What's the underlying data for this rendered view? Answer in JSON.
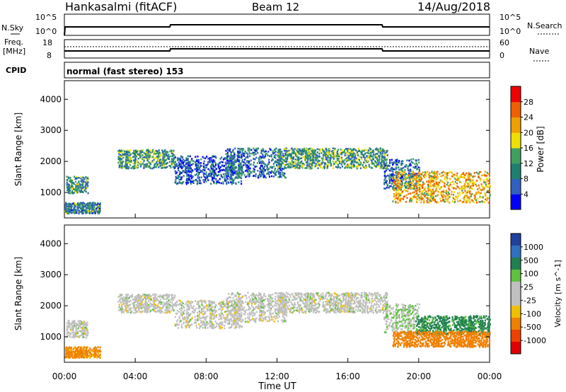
{
  "header": {
    "station": "Hankasalmi (fitACF)",
    "beam": "Beam 12",
    "date": "14/Aug/2018"
  },
  "noise_panel": {
    "left_label": "N.Sky",
    "right_label": "N.Search",
    "left_ticks": [
      "10^5",
      "10^0"
    ],
    "right_ticks": [
      "10^5",
      "10^0"
    ]
  },
  "freq_panel": {
    "left_label_1": "Freq.",
    "left_label_2": "[MHz]",
    "right_label": "Nave",
    "left_ticks": [
      "18",
      "8"
    ],
    "right_ticks": [
      "60",
      "0"
    ]
  },
  "cpid_panel": {
    "label": "CPID",
    "text": "normal (fast stereo) 153"
  },
  "colors": {
    "power_scale": [
      "#0000ff",
      "#3060c0",
      "#208070",
      "#40a060",
      "#f0e000",
      "#f0a000",
      "#f06000",
      "#f00000"
    ],
    "velocity_scale": [
      "#2040a0",
      "#3070c0",
      "#208050",
      "#60c040",
      "#c0c0c0",
      "#c0c0c0",
      "#f0c000",
      "#f08000",
      "#f04000",
      "#e00000"
    ]
  },
  "chart_data": [
    {
      "type": "heatmap",
      "quantity": "Power",
      "ylabel": "Slant Range [km]",
      "ylim": [
        180,
        4600
      ],
      "yticks": [
        "4000",
        "3000",
        "2000",
        "1000"
      ],
      "colorbar_label": "Power [dB]",
      "colorbar_ticks": [
        "28",
        "24",
        "20",
        "16",
        "12",
        "8",
        "4"
      ],
      "colorbar_range": [
        0,
        32
      ],
      "x_range_hours": [
        0,
        24
      ],
      "regions": [
        {
          "t0": 0.1,
          "t1": 1.3,
          "r0": 1000,
          "r1": 1550,
          "level": 11
        },
        {
          "t0": 0.0,
          "t1": 2.0,
          "r0": 350,
          "r1": 700,
          "level": 10
        },
        {
          "t0": 3.0,
          "t1": 6.2,
          "r0": 1800,
          "r1": 2400,
          "level": 12
        },
        {
          "t0": 6.2,
          "t1": 10.0,
          "r0": 1300,
          "r1": 2200,
          "level": 6
        },
        {
          "t0": 9.0,
          "t1": 12.5,
          "r0": 1500,
          "r1": 2450,
          "level": 8
        },
        {
          "t0": 12.0,
          "t1": 18.2,
          "r0": 1800,
          "r1": 2450,
          "level": 12
        },
        {
          "t0": 18.0,
          "t1": 20.0,
          "r0": 1150,
          "r1": 2100,
          "level": 8
        },
        {
          "t0": 18.5,
          "t1": 24.0,
          "r0": 700,
          "r1": 1700,
          "level": 21
        }
      ]
    },
    {
      "type": "heatmap",
      "quantity": "Velocity",
      "ylabel": "Slant Range [km]",
      "ylim": [
        180,
        4600
      ],
      "yticks": [
        "4000",
        "3000",
        "2000",
        "1000"
      ],
      "xlabel": "Time UT",
      "xticks": [
        "00:00",
        "04:00",
        "08:00",
        "12:00",
        "16:00",
        "20:00",
        "00:00"
      ],
      "colorbar_label": "Velocity [m s^-1]",
      "colorbar_ticks": [
        "1000",
        "500",
        "100",
        "25",
        "-25",
        "-100",
        "-500",
        "-1000"
      ],
      "regions": [
        {
          "t0": 0.1,
          "t1": 1.3,
          "r0": 1000,
          "r1": 1550,
          "velocity": 0
        },
        {
          "t0": 0.0,
          "t1": 2.0,
          "r0": 350,
          "r1": 700,
          "velocity": -80
        },
        {
          "t0": 3.0,
          "t1": 6.2,
          "r0": 1800,
          "r1": 2400,
          "velocity": 0
        },
        {
          "t0": 6.2,
          "t1": 10.0,
          "r0": 1300,
          "r1": 2200,
          "velocity": 0
        },
        {
          "t0": 9.0,
          "t1": 12.5,
          "r0": 1500,
          "r1": 2450,
          "velocity": 0
        },
        {
          "t0": 12.0,
          "t1": 18.2,
          "r0": 1800,
          "r1": 2450,
          "velocity": 0
        },
        {
          "t0": 18.0,
          "t1": 20.0,
          "r0": 1150,
          "r1": 2100,
          "velocity": 20
        },
        {
          "t0": 19.8,
          "t1": 24.0,
          "r0": 1100,
          "r1": 1700,
          "velocity": 80
        },
        {
          "t0": 18.5,
          "t1": 24.0,
          "r0": 700,
          "r1": 1200,
          "velocity": -200
        }
      ]
    }
  ]
}
